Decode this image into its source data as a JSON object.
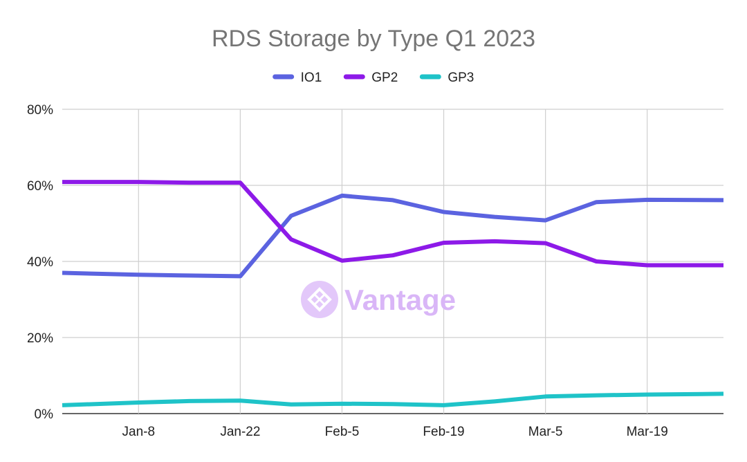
{
  "chart_data": {
    "type": "line",
    "title": "RDS Storage by Type Q1 2023",
    "xlabel": "",
    "ylabel": "",
    "y_tick_labels": [
      "0%",
      "20%",
      "40%",
      "60%",
      "80%"
    ],
    "ylim": [
      0,
      80
    ],
    "grid": true,
    "legend_position": "top",
    "watermark": "Vantage",
    "x": [
      "Jan-1",
      "Jan-8",
      "Jan-15",
      "Jan-22",
      "Jan-29",
      "Feb-5",
      "Feb-12",
      "Feb-19",
      "Feb-26",
      "Mar-5",
      "Mar-12",
      "Mar-19",
      "Mar-26"
    ],
    "x_tick_labels": [
      "Jan-8",
      "Jan-22",
      "Feb-5",
      "Feb-19",
      "Mar-5",
      "Mar-19"
    ],
    "series": [
      {
        "name": "IO1",
        "color": "#5b63e0",
        "values": [
          37.0,
          36.5,
          36.3,
          36.1,
          52.0,
          57.3,
          56.1,
          53.0,
          51.7,
          50.8,
          55.6,
          56.2,
          56.1
        ]
      },
      {
        "name": "GP2",
        "color": "#8d1ae8",
        "values": [
          60.9,
          60.9,
          60.7,
          60.7,
          45.8,
          40.2,
          41.6,
          44.9,
          45.3,
          44.8,
          40.0,
          39.0,
          39.0
        ]
      },
      {
        "name": "GP3",
        "color": "#1fc3c8",
        "values": [
          2.2,
          2.9,
          3.3,
          3.4,
          2.4,
          2.6,
          2.5,
          2.2,
          3.2,
          4.5,
          4.8,
          5.0,
          5.2
        ]
      }
    ]
  }
}
